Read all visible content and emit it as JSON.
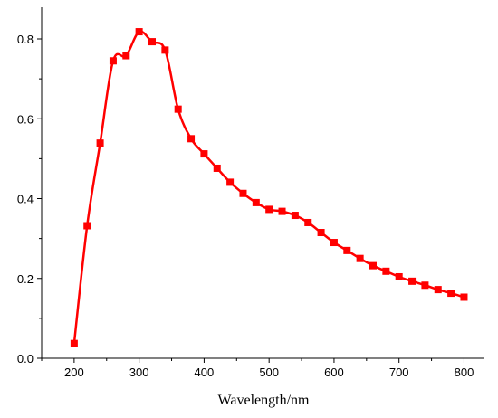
{
  "colors": {
    "series": "#ff0000",
    "axis": "#000000",
    "background": "#ffffff"
  },
  "chart_data": {
    "type": "line",
    "title": "",
    "xlabel": "Wavelength/nm",
    "ylabel": "",
    "xlim": [
      150,
      830
    ],
    "ylim": [
      0,
      0.81
    ],
    "xticks": [
      200,
      300,
      400,
      500,
      600,
      700,
      800
    ],
    "xtick_labels": [
      "200",
      "300",
      "400",
      "500",
      "600",
      "700",
      "800"
    ],
    "yticks": [
      0.0,
      0.2,
      0.4,
      0.6,
      0.8
    ],
    "ytick_labels": [
      "0.0",
      "0.2",
      "0.4",
      "0.6",
      "0.8"
    ],
    "grid": false,
    "legend": "none",
    "marker": "square",
    "series": [
      {
        "x": [
          200,
          220,
          240,
          260,
          280,
          300,
          320,
          340,
          360,
          380,
          400,
          420,
          440,
          460,
          480,
          500,
          520,
          540,
          560,
          580,
          600,
          620,
          640,
          660,
          680,
          700,
          720,
          740,
          760,
          780,
          800
        ],
        "y": [
          0.037,
          0.332,
          0.539,
          0.745,
          0.758,
          0.818,
          0.793,
          0.772,
          0.624,
          0.55,
          0.512,
          0.476,
          0.441,
          0.413,
          0.39,
          0.373,
          0.368,
          0.358,
          0.34,
          0.315,
          0.29,
          0.27,
          0.25,
          0.232,
          0.218,
          0.204,
          0.193,
          0.183,
          0.172,
          0.163,
          0.153
        ]
      }
    ]
  }
}
